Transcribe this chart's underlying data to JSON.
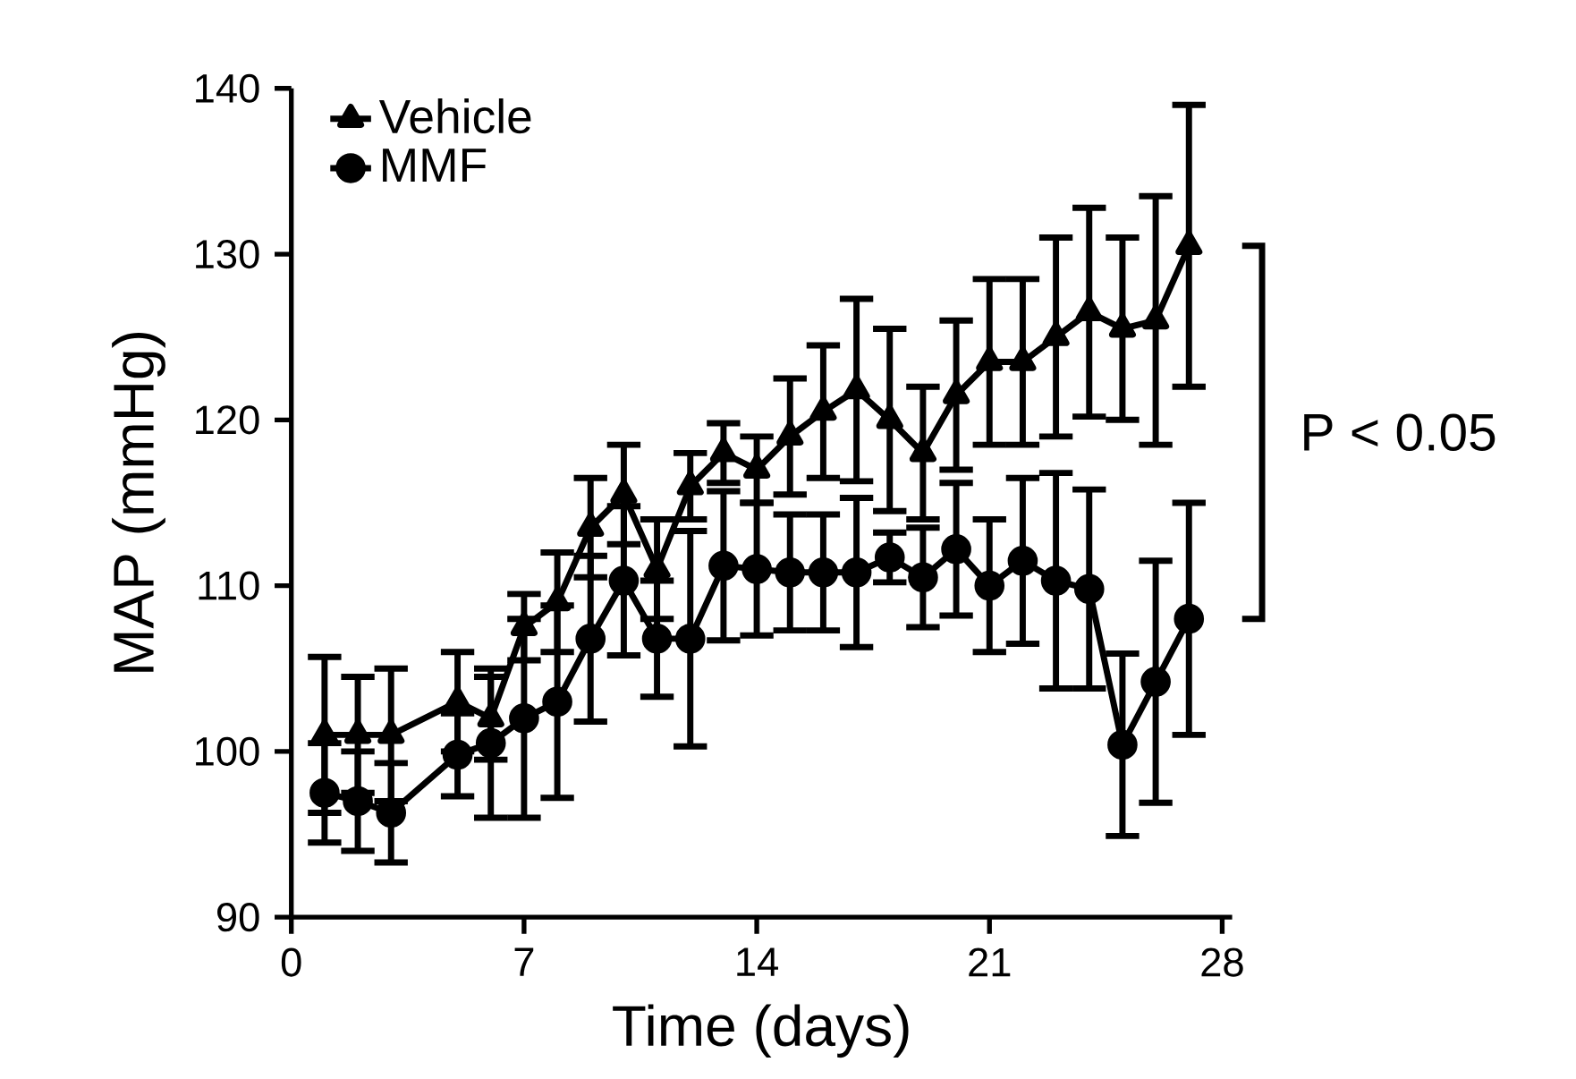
{
  "chart_data": {
    "type": "line",
    "xlabel": "Time (days)",
    "ylabel": "MAP (mmHg)",
    "xlim": [
      0,
      28.3
    ],
    "ylim": [
      90,
      140
    ],
    "xticks": [
      0,
      7,
      14,
      21,
      28
    ],
    "yticks": [
      90,
      100,
      110,
      120,
      130,
      140
    ],
    "grid": false,
    "legend": "top left",
    "line_style": "solid",
    "x": [
      1,
      2,
      3,
      5,
      6,
      7,
      8,
      9,
      10,
      11,
      12,
      13,
      14,
      15,
      16,
      17,
      18,
      19,
      20,
      21,
      22,
      23,
      24,
      25,
      26,
      27
    ],
    "series": [
      {
        "name": "Vehicle",
        "color": "#000000",
        "marker": "triangle",
        "values": [
          101,
          101,
          101,
          103,
          102,
          107.5,
          109,
          113.5,
          115.5,
          111,
          116,
          118,
          117,
          119,
          120.5,
          121.8,
          120,
          118,
          121.5,
          123.5,
          123.5,
          125,
          126.5,
          125.5,
          126,
          130.5
        ],
        "errors": [
          4.7,
          3.5,
          4,
          3,
          2.5,
          2,
          3,
          3,
          3,
          3,
          2,
          1.8,
          2,
          3.5,
          4,
          5.5,
          5.5,
          4,
          4.5,
          5,
          5,
          6,
          6.3,
          5.5,
          7.5,
          8.5
        ]
      },
      {
        "name": "MMF",
        "color": "#000000",
        "marker": "circle",
        "values": [
          97.5,
          97,
          96.3,
          99.8,
          100.5,
          102,
          103,
          106.8,
          110.3,
          106.8,
          106.8,
          111.2,
          111,
          110.8,
          110.8,
          110.8,
          111.7,
          110.5,
          112.2,
          110,
          111.5,
          110.3,
          109.8,
          100.4,
          104.2,
          108
        ],
        "errors": [
          3,
          3,
          3,
          2.5,
          4.5,
          6,
          5.8,
          5,
          4.5,
          3.5,
          6.5,
          4.5,
          4,
          3.5,
          3.5,
          4.5,
          1.5,
          3,
          4,
          4,
          5,
          6.5,
          6,
          5.5,
          7.3,
          7
        ]
      }
    ],
    "annotations": [
      "P < 0.05"
    ]
  }
}
